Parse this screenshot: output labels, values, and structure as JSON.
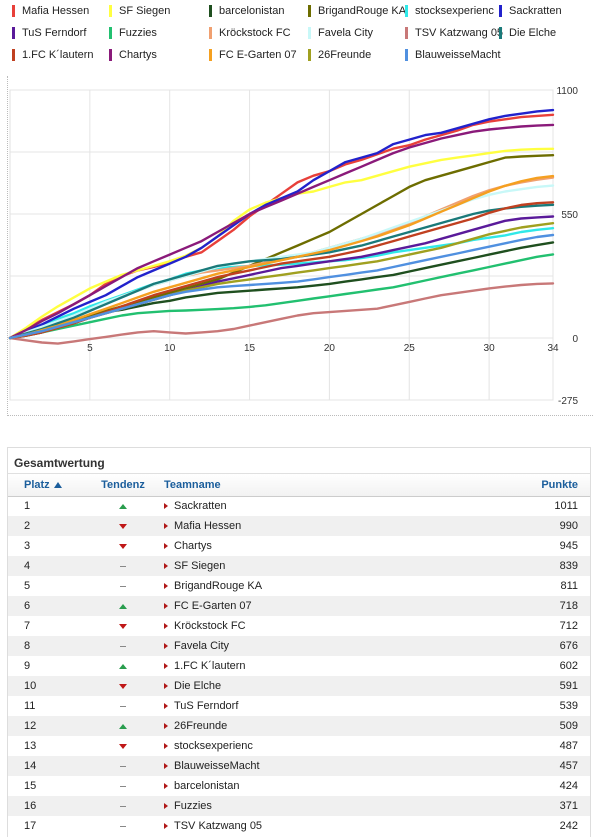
{
  "chart_data": {
    "type": "line",
    "x": [
      0,
      1,
      2,
      3,
      4,
      5,
      6,
      7,
      8,
      9,
      10,
      11,
      12,
      13,
      14,
      15,
      16,
      17,
      18,
      19,
      20,
      21,
      22,
      23,
      24,
      25,
      26,
      27,
      28,
      29,
      30,
      31,
      32,
      33,
      34
    ],
    "xticks": [
      "5",
      "10",
      "15",
      "20",
      "25",
      "30",
      "34"
    ],
    "yticks": [
      "1100",
      "550",
      "0",
      "-275"
    ],
    "xlim": [
      0,
      34
    ],
    "ylim": [
      -275,
      1100
    ],
    "grid": true,
    "legend_position": "top",
    "series": [
      {
        "name": "Mafia Hessen",
        "color": "#e8403a",
        "values": [
          0,
          40,
          80,
          115,
          150,
          190,
          240,
          275,
          300,
          315,
          335,
          360,
          380,
          430,
          480,
          540,
          590,
          640,
          690,
          720,
          740,
          770,
          790,
          815,
          840,
          855,
          880,
          900,
          920,
          945,
          960,
          970,
          980,
          985,
          990
        ]
      },
      {
        "name": "SF Siegen",
        "color": "#ffff40",
        "values": [
          0,
          45,
          95,
          140,
          180,
          220,
          250,
          280,
          300,
          320,
          340,
          365,
          400,
          450,
          520,
          570,
          600,
          620,
          640,
          650,
          670,
          690,
          700,
          720,
          740,
          760,
          775,
          790,
          800,
          810,
          820,
          830,
          835,
          838,
          839
        ]
      },
      {
        "name": "barcelonistan",
        "color": "#1f4f1f",
        "values": [
          0,
          20,
          40,
          60,
          80,
          100,
          115,
          125,
          140,
          155,
          165,
          180,
          190,
          200,
          205,
          210,
          215,
          220,
          225,
          232,
          240,
          250,
          260,
          270,
          280,
          295,
          310,
          325,
          340,
          355,
          370,
          385,
          400,
          412,
          424
        ]
      },
      {
        "name": "BrigandRouge KA",
        "color": "#6d6d00",
        "values": [
          0,
          15,
          35,
          55,
          75,
          100,
          120,
          140,
          160,
          180,
          200,
          220,
          240,
          260,
          290,
          320,
          350,
          380,
          410,
          440,
          470,
          510,
          550,
          590,
          630,
          670,
          700,
          720,
          740,
          760,
          780,
          800,
          805,
          808,
          811
        ]
      },
      {
        "name": "stocksexperienc",
        "color": "#30e8e8",
        "values": [
          0,
          30,
          60,
          85,
          110,
          140,
          165,
          190,
          215,
          240,
          260,
          285,
          300,
          310,
          315,
          320,
          322,
          325,
          330,
          335,
          340,
          345,
          355,
          365,
          380,
          390,
          400,
          410,
          420,
          435,
          445,
          455,
          470,
          480,
          487
        ]
      },
      {
        "name": "Sackratten",
        "color": "#2222cc",
        "values": [
          0,
          30,
          60,
          95,
          130,
          160,
          190,
          230,
          270,
          300,
          330,
          360,
          400,
          450,
          500,
          550,
          590,
          620,
          650,
          700,
          740,
          780,
          800,
          820,
          860,
          880,
          900,
          910,
          930,
          950,
          970,
          985,
          995,
          1005,
          1011
        ]
      },
      {
        "name": "TuS Ferndorf",
        "color": "#5a1a9a",
        "values": [
          0,
          10,
          25,
          45,
          65,
          90,
          110,
          130,
          150,
          170,
          190,
          210,
          230,
          250,
          265,
          280,
          295,
          310,
          320,
          330,
          340,
          350,
          360,
          375,
          390,
          405,
          420,
          440,
          460,
          480,
          500,
          520,
          530,
          535,
          539
        ]
      },
      {
        "name": "Fuzzies",
        "color": "#22c070",
        "values": [
          0,
          10,
          25,
          40,
          55,
          70,
          85,
          100,
          110,
          115,
          120,
          122,
          125,
          128,
          132,
          138,
          145,
          155,
          165,
          175,
          185,
          195,
          205,
          215,
          225,
          240,
          255,
          270,
          285,
          300,
          315,
          330,
          345,
          360,
          371
        ]
      },
      {
        "name": "Kröckstock FC",
        "color": "#f0a070",
        "values": [
          0,
          20,
          45,
          70,
          95,
          125,
          155,
          185,
          210,
          235,
          255,
          275,
          290,
          300,
          310,
          320,
          335,
          350,
          365,
          380,
          400,
          420,
          440,
          460,
          480,
          510,
          540,
          570,
          600,
          630,
          655,
          675,
          690,
          702,
          712
        ]
      },
      {
        "name": "Favela City",
        "color": "#c8f8f8",
        "values": [
          0,
          25,
          50,
          75,
          100,
          130,
          160,
          185,
          210,
          235,
          255,
          275,
          295,
          315,
          330,
          340,
          350,
          360,
          370,
          380,
          400,
          420,
          440,
          465,
          490,
          515,
          540,
          565,
          590,
          615,
          635,
          650,
          660,
          670,
          676
        ]
      },
      {
        "name": "TSV Katzwang 05",
        "color": "#c87878",
        "values": [
          0,
          -10,
          -20,
          -25,
          -15,
          -5,
          5,
          15,
          25,
          30,
          25,
          20,
          25,
          30,
          40,
          55,
          70,
          85,
          100,
          110,
          115,
          120,
          125,
          130,
          145,
          160,
          175,
          190,
          200,
          210,
          220,
          228,
          235,
          240,
          242
        ]
      },
      {
        "name": "Die Elche",
        "color": "#1a7a7a",
        "values": [
          0,
          20,
          40,
          65,
          90,
          120,
          150,
          180,
          210,
          240,
          260,
          280,
          300,
          320,
          330,
          340,
          345,
          350,
          360,
          370,
          380,
          395,
          410,
          430,
          450,
          470,
          490,
          510,
          530,
          550,
          565,
          575,
          582,
          587,
          591
        ]
      },
      {
        "name": "1.FC K´lautern",
        "color": "#c04020",
        "values": [
          0,
          10,
          25,
          45,
          65,
          90,
          115,
          140,
          165,
          190,
          210,
          230,
          250,
          270,
          285,
          300,
          315,
          330,
          340,
          350,
          360,
          375,
          390,
          410,
          430,
          450,
          470,
          490,
          510,
          530,
          555,
          575,
          590,
          598,
          602
        ]
      },
      {
        "name": "Chartys",
        "color": "#8a1a7a",
        "values": [
          0,
          35,
          75,
          110,
          150,
          190,
          230,
          270,
          310,
          340,
          370,
          400,
          430,
          470,
          510,
          550,
          580,
          610,
          640,
          670,
          700,
          730,
          760,
          790,
          820,
          845,
          865,
          885,
          900,
          915,
          925,
          932,
          938,
          942,
          945
        ]
      },
      {
        "name": "FC E-Garten 07",
        "color": "#f5a020",
        "values": [
          0,
          15,
          35,
          55,
          80,
          105,
          130,
          155,
          180,
          205,
          225,
          245,
          265,
          285,
          300,
          315,
          330,
          345,
          360,
          375,
          390,
          410,
          430,
          450,
          475,
          500,
          530,
          560,
          590,
          620,
          650,
          675,
          695,
          710,
          718
        ]
      },
      {
        "name": "26Freunde",
        "color": "#a0a020",
        "values": [
          0,
          15,
          30,
          50,
          70,
          90,
          110,
          130,
          150,
          170,
          190,
          210,
          225,
          240,
          250,
          260,
          270,
          280,
          290,
          300,
          310,
          320,
          330,
          340,
          355,
          370,
          385,
          400,
          420,
          440,
          460,
          475,
          490,
          500,
          509
        ]
      },
      {
        "name": "BlauweisseMacht",
        "color": "#5090e0",
        "values": [
          0,
          15,
          30,
          50,
          70,
          90,
          110,
          130,
          150,
          170,
          190,
          205,
          215,
          225,
          230,
          235,
          240,
          245,
          250,
          260,
          270,
          280,
          290,
          300,
          315,
          330,
          345,
          360,
          375,
          390,
          405,
          420,
          435,
          448,
          457
        ]
      }
    ]
  },
  "table": {
    "title": "Gesamtwertung",
    "headers": {
      "platz": "Platz",
      "tendenz": "Tendenz",
      "teamname": "Teamname",
      "punkte": "Punkte"
    },
    "rows": [
      {
        "platz": "1",
        "trend": "up",
        "team": "Sackratten",
        "points": "1011"
      },
      {
        "platz": "2",
        "trend": "down",
        "team": "Mafia Hessen",
        "points": "990"
      },
      {
        "platz": "3",
        "trend": "down",
        "team": "Chartys",
        "points": "945"
      },
      {
        "platz": "4",
        "trend": "same",
        "team": "SF Siegen",
        "points": "839"
      },
      {
        "platz": "5",
        "trend": "same",
        "team": "BrigandRouge KA",
        "points": "811"
      },
      {
        "platz": "6",
        "trend": "up",
        "team": "FC E-Garten 07",
        "points": "718"
      },
      {
        "platz": "7",
        "trend": "down",
        "team": "Kröckstock FC",
        "points": "712"
      },
      {
        "platz": "8",
        "trend": "same",
        "team": "Favela City",
        "points": "676"
      },
      {
        "platz": "9",
        "trend": "up",
        "team": "1.FC K´lautern",
        "points": "602"
      },
      {
        "platz": "10",
        "trend": "down",
        "team": "Die Elche",
        "points": "591"
      },
      {
        "platz": "11",
        "trend": "same",
        "team": "TuS Ferndorf",
        "points": "539"
      },
      {
        "platz": "12",
        "trend": "up",
        "team": "26Freunde",
        "points": "509"
      },
      {
        "platz": "13",
        "trend": "down",
        "team": "stocksexperienc",
        "points": "487"
      },
      {
        "platz": "14",
        "trend": "same",
        "team": "BlauweisseMacht",
        "points": "457"
      },
      {
        "platz": "15",
        "trend": "same",
        "team": "barcelonistan",
        "points": "424"
      },
      {
        "platz": "16",
        "trend": "same",
        "team": "Fuzzies",
        "points": "371"
      },
      {
        "platz": "17",
        "trend": "same",
        "team": "TSV Katzwang 05",
        "points": "242"
      }
    ]
  }
}
